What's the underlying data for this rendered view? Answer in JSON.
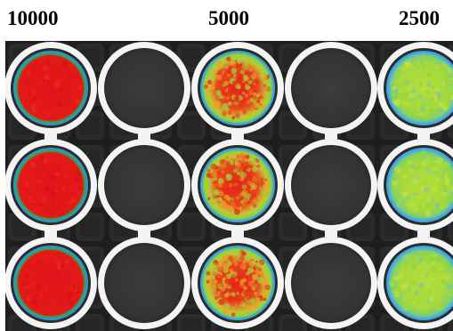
{
  "column_labels": {
    "col1": "10000",
    "col2": "5000",
    "col3": "2500"
  },
  "plate": {
    "rows": 3,
    "columns": 5,
    "wells": [
      [
        "high",
        "empty",
        "medium",
        "empty",
        "low"
      ],
      [
        "high",
        "empty",
        "medium",
        "empty",
        "low"
      ],
      [
        "high",
        "empty",
        "medium",
        "empty",
        "low"
      ]
    ]
  },
  "colors": {
    "high_signal": "#e5131a",
    "medium_signal_mix": [
      "#e82a14",
      "#9ed33a",
      "#f0a024"
    ],
    "low_signal": "#a9dd3a",
    "ring": "#f4f4f4",
    "empty_well": "#3a3a3a",
    "plate_background": "#1f1f1f"
  }
}
